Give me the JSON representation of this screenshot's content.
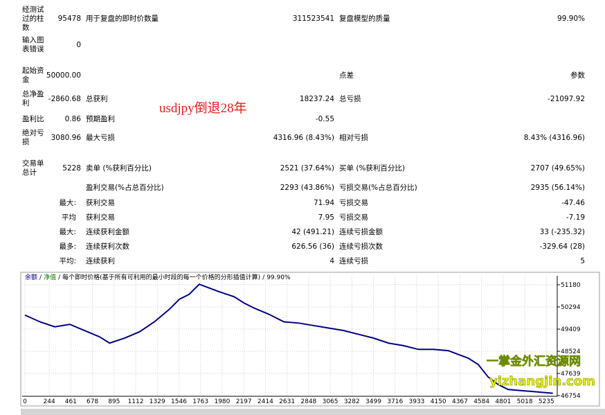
{
  "table": {
    "rows": [
      [
        "经测试过的柱数",
        "95478",
        "用于复盘的即时价数量",
        "311523541",
        "复盘模型的质量",
        "99.90%"
      ],
      [
        "输入图表错误",
        "0",
        null,
        null,
        null,
        null
      ],
      [
        "起始资金",
        "50000.00",
        null,
        null,
        "点差",
        "参数"
      ],
      [
        "总净盈利",
        "-2860.68",
        "总获利",
        "18237.24",
        "总亏损",
        "-21097.92"
      ],
      [
        "盈利比",
        "0.86",
        "预期盈利",
        "-0.55",
        null,
        null
      ],
      [
        "绝对亏损",
        "3080.96",
        "最大亏损",
        "4316.96 (8.43%)",
        "相对亏损",
        "8.43% (4316.96)"
      ],
      [
        "交易单总计",
        "5228",
        "卖单 (%获利百分比)",
        "2521 (37.64%)",
        "买单 (%获利百分比)",
        "2707 (49.65%)"
      ],
      [
        null,
        null,
        "盈利交易(%占总百分比)",
        "2293 (43.86%)",
        "亏损交易(%占总百分比)",
        "2935 (56.14%)"
      ],
      [
        "最大:",
        null,
        "获利交易",
        "71.94",
        "亏损交易",
        "-47.46"
      ],
      [
        "平均",
        null,
        "获利交易",
        "7.95",
        "亏损交易",
        "-7.19"
      ],
      [
        "最大:",
        null,
        "连续获利金额",
        "42 (491.21)",
        "连续亏损金额",
        "33 (-235.32)"
      ],
      [
        "最多:",
        null,
        "连续获利次数",
        "626.56 (36)",
        "连续亏损次数",
        "-329.64 (28)"
      ],
      [
        "平均:",
        null,
        "连续获利",
        "4",
        "连续亏损",
        "5"
      ]
    ]
  },
  "annotation": "usdjpy倒退28年",
  "watermark": {
    "title": "一掌金外汇资源网",
    "url": "yizhangjin.com"
  },
  "chart_data": {
    "type": "line",
    "header": [
      "余额",
      "净值",
      "每个即时价格(基于所有可利用的最小时段的每一个价格的分形插值计算)",
      "99.90%"
    ],
    "header_colors": [
      "#000080",
      "#008000",
      "#000000",
      "#000000"
    ],
    "separator": "/",
    "x": [
      0,
      150,
      300,
      450,
      600,
      750,
      850,
      1000,
      1150,
      1300,
      1450,
      1550,
      1650,
      1750,
      1850,
      1950,
      2100,
      2200,
      2300,
      2450,
      2600,
      2750,
      2900,
      3050,
      3200,
      3350,
      3500,
      3650,
      3800,
      3950,
      4100,
      4250,
      4350,
      4450,
      4550,
      4650,
      4750,
      4850,
      5000,
      5150,
      5300
    ],
    "series": [
      {
        "name": "余额",
        "color": "#000080",
        "values": [
          49970,
          49700,
          49500,
          49600,
          49350,
          49100,
          48850,
          49050,
          49300,
          49700,
          50200,
          50600,
          50800,
          51200,
          51050,
          50900,
          50700,
          50450,
          50250,
          50000,
          49700,
          49650,
          49550,
          49450,
          49350,
          49200,
          49050,
          48850,
          48750,
          48600,
          48600,
          48550,
          48400,
          48250,
          48000,
          47500,
          47200,
          47000,
          46950,
          46900,
          46850
        ]
      }
    ],
    "xlim": [
      0,
      5330
    ],
    "ylim": [
      46590,
      51345
    ],
    "xticks": [
      0,
      244,
      461,
      678,
      895,
      1112,
      1329,
      1546,
      1763,
      1980,
      2197,
      2414,
      2631,
      2848,
      3065,
      3282,
      3499,
      3716,
      3933,
      4150,
      4367,
      4584,
      4801,
      5018,
      5235
    ],
    "yticks": [
      46754,
      47639,
      48524,
      49409,
      50294,
      51180
    ],
    "grid": true
  }
}
